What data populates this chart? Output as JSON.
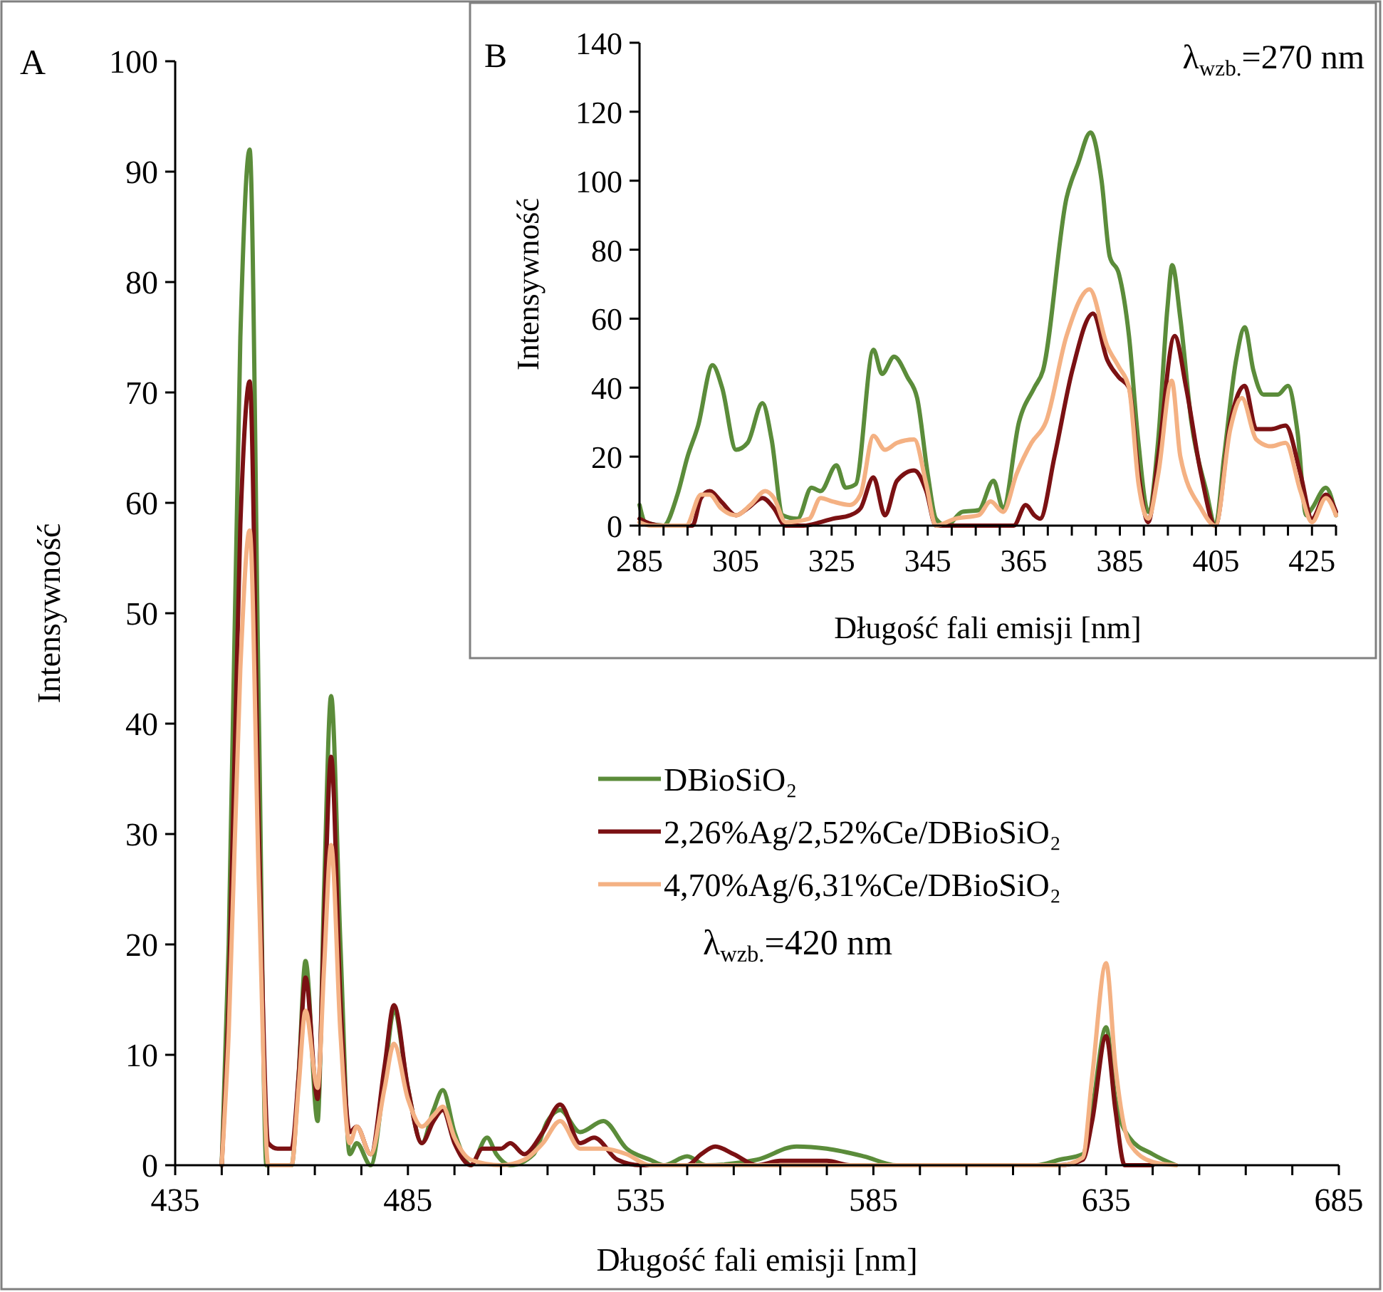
{
  "chart_data": [
    {
      "type": "line",
      "xlabel": "Długość fali emisji [nm]",
      "ylabel": "Intensywność",
      "annotations": [
        "A",
        "λ$_{wzb.}$=420 nm"
      ],
      "xlim": [
        435,
        685
      ],
      "xticks": [
        435,
        {
          "value": 445,
          "label": null
        },
        {
          "value": 455,
          "label": null
        },
        {
          "value": 465,
          "label": null
        },
        {
          "value": 475,
          "label": null
        },
        485,
        {
          "value": 495,
          "label": null
        },
        {
          "value": 505,
          "label": null
        },
        {
          "value": 515,
          "label": null
        },
        {
          "value": 525,
          "label": null
        },
        535,
        {
          "value": 545,
          "label": null
        },
        {
          "value": 555,
          "label": null
        },
        {
          "value": 565,
          "label": null
        },
        {
          "value": 575,
          "label": null
        },
        585,
        {
          "value": 595,
          "label": null
        },
        {
          "value": 605,
          "label": null
        },
        {
          "value": 615,
          "label": null
        },
        {
          "value": 625,
          "label": null
        },
        635,
        {
          "value": 645,
          "label": null
        },
        {
          "value": 655,
          "label": null
        },
        {
          "value": 665,
          "label": null
        },
        {
          "value": 675,
          "label": null
        },
        685
      ],
      "ylim": [
        0,
        100
      ],
      "yticks": [
        0,
        10,
        20,
        30,
        40,
        50,
        60,
        70,
        80,
        90,
        100
      ],
      "legend": "right",
      "marker": "none",
      "line_style": "solid",
      "series": [
        {
          "name": "DBioSiO₂",
          "color": "#5b8c3a",
          "x": [
            445,
            446.5,
            449,
            451,
            453,
            454.6,
            460,
            461.5,
            463,
            465.6,
            467,
            468.5,
            470.5,
            472.5,
            474,
            477,
            480,
            482,
            485,
            488,
            490.5,
            492.5,
            495,
            498.5,
            502,
            504,
            507,
            512,
            515,
            517.7,
            522,
            527,
            532,
            537,
            540,
            545,
            549,
            560,
            568.5,
            575,
            583,
            590,
            620,
            625,
            630,
            632,
            635,
            637,
            640,
            645,
            650
          ],
          "values": [
            0,
            20,
            75,
            92,
            40,
            0,
            0,
            8,
            18.5,
            4,
            25,
            42.5,
            20,
            1,
            2,
            0,
            8,
            14,
            7,
            2,
            5,
            6.8,
            3,
            0,
            2.5,
            1,
            0,
            1,
            4,
            5,
            3,
            4,
            1.5,
            0.5,
            0,
            0.8,
            0,
            0.5,
            1.7,
            1.5,
            0.8,
            0,
            0,
            0.5,
            1,
            5,
            12.5,
            6,
            2.5,
            1,
            0
          ]
        },
        {
          "name": "2,26%Ag/2,52%Ce/DBioSiO₂",
          "color": "#7b1113",
          "x": [
            445,
            446.5,
            449,
            451,
            453,
            455,
            457,
            460,
            461.5,
            463,
            465.6,
            467,
            468.5,
            470.5,
            472.5,
            474,
            477,
            480,
            482,
            485,
            488,
            490.5,
            492.5,
            495,
            498.5,
            501,
            505,
            507,
            510,
            514,
            517.7,
            522,
            525,
            530,
            535,
            545,
            548,
            551,
            555,
            560,
            565,
            575,
            580,
            625,
            630,
            632,
            635,
            637,
            639,
            645
          ],
          "values": [
            0,
            15,
            58,
            71,
            30,
            2,
            1.5,
            1.5,
            8,
            17,
            6,
            22,
            37,
            15,
            3,
            3.5,
            1,
            9,
            14.5,
            7,
            2,
            4,
            5,
            2,
            0,
            1.5,
            1.5,
            2,
            1,
            3,
            5.5,
            2,
            2.5,
            0.5,
            0,
            0,
            1,
            1.7,
            1,
            0,
            0.4,
            0.4,
            0,
            0,
            0.5,
            4,
            11.7,
            5,
            0,
            0
          ]
        },
        {
          "name": "4,70%Ag/6,31%Ce/DBioSiO₂",
          "color": "#f4b183",
          "x": [
            445,
            446.5,
            449,
            451,
            453,
            455,
            460,
            461.5,
            463,
            465.6,
            467,
            468.5,
            470.5,
            472.5,
            474,
            477,
            480,
            482,
            485,
            488,
            490.5,
            492.5,
            495,
            498.5,
            505,
            510,
            514,
            517.7,
            522,
            527,
            532,
            537,
            625,
            630,
            632,
            635,
            637,
            640,
            645,
            650
          ],
          "values": [
            0,
            12,
            45,
            57.5,
            25,
            0,
            0,
            7,
            14,
            7,
            18,
            29,
            12,
            2,
            3.5,
            1,
            7,
            11,
            6,
            3.5,
            4.5,
            5.3,
            2.5,
            0.5,
            0,
            0.5,
            2,
            4,
            1.5,
            1.5,
            1,
            0,
            0,
            0.7,
            8,
            18.3,
            9,
            2,
            0.3,
            0
          ]
        }
      ]
    },
    {
      "type": "line",
      "xlabel": "Długość fali emisji [nm]",
      "ylabel": "Intensywność",
      "annotations": [
        "B",
        "λ$_{wzb.}$=270 nm"
      ],
      "xlim": [
        285,
        430
      ],
      "xticks": [
        285,
        {
          "value": 290,
          "label": null
        },
        {
          "value": 295,
          "label": null
        },
        {
          "value": 300,
          "label": null
        },
        305,
        {
          "value": 310,
          "label": null
        },
        {
          "value": 315,
          "label": null
        },
        {
          "value": 320,
          "label": null
        },
        325,
        {
          "value": 330,
          "label": null
        },
        {
          "value": 335,
          "label": null
        },
        {
          "value": 340,
          "label": null
        },
        345,
        {
          "value": 350,
          "label": null
        },
        {
          "value": 355,
          "label": null
        },
        {
          "value": 360,
          "label": null
        },
        365,
        {
          "value": 370,
          "label": null
        },
        {
          "value": 375,
          "label": null
        },
        {
          "value": 380,
          "label": null
        },
        385,
        {
          "value": 390,
          "label": null
        },
        {
          "value": 395,
          "label": null
        },
        {
          "value": 400,
          "label": null
        },
        405,
        {
          "value": 410,
          "label": null
        },
        {
          "value": 415,
          "label": null
        },
        {
          "value": 420,
          "label": null
        },
        425,
        {
          "value": 430,
          "label": null
        }
      ],
      "ylim": [
        0,
        140
      ],
      "yticks": [
        0,
        20,
        40,
        60,
        80,
        100,
        120,
        140
      ],
      "marker": "none",
      "line_style": "solid",
      "series": [
        {
          "color": "#5b8c3a",
          "x": [
            285,
            286.2,
            290,
            292.9,
            295,
            297.2,
            300.2,
            302.2,
            305.1,
            307.5,
            310.6,
            312.5,
            314.8,
            317.9,
            320.8,
            322.7,
            326,
            327.9,
            330,
            333.7,
            335.5,
            338,
            340.8,
            342.8,
            345,
            346.7,
            348.9,
            352.2,
            355.6,
            358.7,
            360.7,
            364,
            367.2,
            369,
            373.9,
            376.3,
            378.9,
            381.2,
            382.9,
            384.8,
            386.9,
            388.8,
            390.9,
            393,
            394.9,
            395.9,
            397.6,
            399.9,
            403,
            404.9,
            406.7,
            409.2,
            411,
            412.8,
            414.9,
            417.9,
            420,
            422,
            423.8,
            425,
            427.9,
            430
          ],
          "values": [
            6,
            1,
            0,
            9,
            20,
            29,
            46.5,
            40,
            22,
            24,
            35.5,
            25,
            3,
            2,
            11,
            10,
            17.5,
            11,
            12,
            51,
            44,
            49,
            43,
            37,
            15,
            2,
            0,
            4,
            4.5,
            13,
            5,
            30,
            40,
            45,
            95,
            105,
            114,
            100,
            78,
            73,
            55,
            25,
            4,
            25,
            63,
            75.5,
            60,
            30,
            10,
            0,
            20,
            48,
            57.5,
            45,
            38,
            38,
            40.5,
            27,
            3,
            5,
            11,
            3
          ]
        },
        {
          "color": "#7b1113",
          "x": [
            285,
            287.4,
            289.9,
            296,
            297.8,
            299.6,
            302,
            305.1,
            307.5,
            310.6,
            313,
            315.4,
            319.1,
            322.7,
            325.2,
            328.8,
            331,
            333.7,
            336.1,
            338.6,
            342.2,
            344.7,
            346.7,
            362.9,
            365.4,
            367.2,
            368.4,
            371.4,
            375.1,
            379.4,
            382.4,
            384.8,
            386.9,
            388.9,
            390.9,
            393,
            396.4,
            398.8,
            401.9,
            404.9,
            408,
            411,
            413.4,
            416.5,
            419.5,
            422.6,
            425,
            427.9,
            430
          ],
          "values": [
            2,
            0.5,
            0,
            0,
            8,
            10,
            7,
            3,
            5,
            8,
            5,
            0,
            0,
            1,
            2,
            3,
            5,
            14,
            3,
            13,
            16,
            10,
            0,
            0,
            6,
            3,
            2,
            20,
            45,
            61.5,
            48,
            43,
            40,
            15,
            1,
            20,
            55,
            40,
            15,
            0,
            30,
            40.5,
            28,
            28,
            29,
            15,
            2,
            9,
            4
          ]
        },
        {
          "color": "#f4b183",
          "x": [
            285,
            287.4,
            289.9,
            294.7,
            297.8,
            299.6,
            302,
            305.1,
            308.1,
            311.2,
            313,
            315.4,
            320.3,
            322.7,
            325.2,
            328.8,
            331,
            333.7,
            336.1,
            338.6,
            342.2,
            344.7,
            346.7,
            350.7,
            355.6,
            358.1,
            360.7,
            363.5,
            366.6,
            369.6,
            373.9,
            378.7,
            382.4,
            384.8,
            386.9,
            388.9,
            390.9,
            393,
            395.8,
            397.6,
            401.9,
            404.9,
            408,
            410.4,
            413.4,
            416.5,
            419.5,
            422.6,
            425,
            427.9,
            430
          ],
          "values": [
            1,
            0,
            0,
            0,
            9,
            9,
            5,
            3,
            6,
            10,
            8,
            1,
            2,
            8,
            7,
            6,
            9,
            26,
            22,
            24,
            25,
            12,
            0,
            2,
            3,
            7,
            4,
            15,
            24,
            30,
            55,
            68.5,
            52,
            46,
            40,
            12,
            2,
            15,
            42,
            20,
            5,
            0,
            28,
            37,
            25,
            23,
            24,
            10,
            1,
            8,
            3
          ]
        }
      ]
    }
  ]
}
